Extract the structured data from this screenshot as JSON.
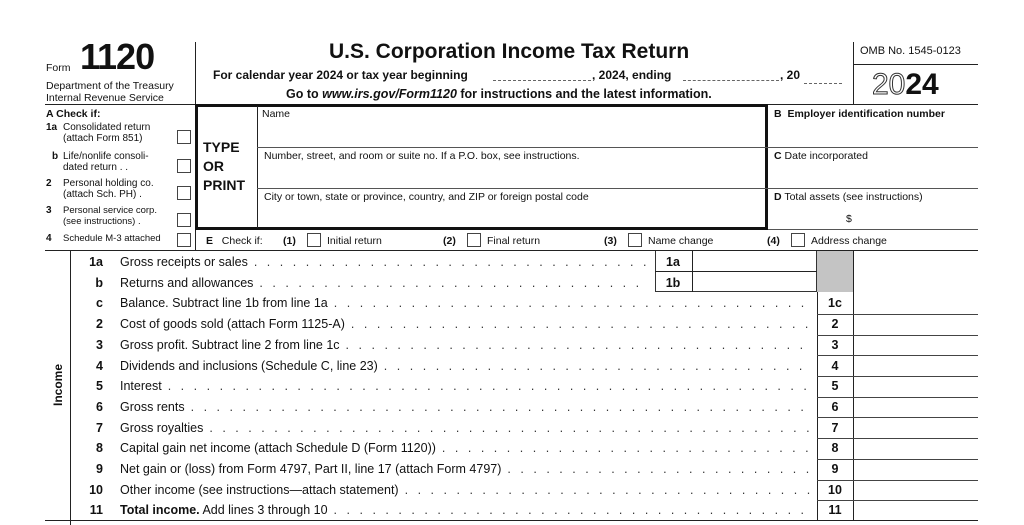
{
  "header": {
    "form_prefix": "Form",
    "form_number": "1120",
    "dept_line1": "Department of the Treasury",
    "dept_line2": "Internal Revenue Service",
    "title": "U.S. Corporation Income Tax Return",
    "subtitle_a": "For calendar year 2024 or tax year beginning",
    "subtitle_b": ", 2024, ending",
    "subtitle_c": ", 20",
    "goto_prefix": "Go to",
    "goto_url": "www.irs.gov/Form1120",
    "goto_suffix": "for instructions and the latest information.",
    "omb": "OMB No. 1545-0123",
    "year_outline": "20",
    "year_bold": "24"
  },
  "check_a": {
    "title": "A  Check if:",
    "items": [
      {
        "num": "1a",
        "l1": "Consolidated return",
        "l2": "(attach Form 851)"
      },
      {
        "num": "b",
        "l1": "Life/nonlife consoli-",
        "l2": "dated return .     ."
      },
      {
        "num": "2",
        "l1": "Personal holding co.",
        "l2": "(attach Sch. PH)  ."
      },
      {
        "num": "3",
        "l1": "Personal service corp.",
        "l2": "(see instructions)  ."
      },
      {
        "num": "4",
        "l1": "Schedule M-3 attached",
        "l2": ""
      }
    ]
  },
  "type_or_print": {
    "l1": "TYPE",
    "l2": "OR",
    "l3": "PRINT"
  },
  "address": {
    "name_label": "Name",
    "name_value": "",
    "street_label": "Number, street, and room or suite no. If a P.O. box, see instructions.",
    "street_value": "",
    "city_label": "City or town, state or province, country, and ZIP or foreign postal code",
    "city_value": ""
  },
  "right_fields": {
    "b_letter": "B",
    "b_label": "Employer identification number",
    "c_letter": "C",
    "c_label": "Date incorporated",
    "d_letter": "D",
    "d_label": "Total assets (see instructions)",
    "d_currency": "$"
  },
  "check_e": {
    "label_letter": "E",
    "label": "Check if:",
    "options": [
      {
        "num": "(1)",
        "label": "Initial return"
      },
      {
        "num": "(2)",
        "label": "Final return"
      },
      {
        "num": "(3)",
        "label": "Name change"
      },
      {
        "num": "(4)",
        "label": "Address change"
      }
    ]
  },
  "income": {
    "section_label": "Income",
    "lines": [
      {
        "num": "1a",
        "label": "Gross receipts or sales",
        "box": "1a"
      },
      {
        "num": "b",
        "label": "Returns and allowances",
        "box": "1b"
      },
      {
        "num": "c",
        "label": "Balance. Subtract line 1b from line 1a",
        "box": "1c"
      },
      {
        "num": "2",
        "label": "Cost of goods sold (attach Form 1125-A)",
        "box": "2"
      },
      {
        "num": "3",
        "label": "Gross profit. Subtract line 2 from line 1c",
        "box": "3"
      },
      {
        "num": "4",
        "label": "Dividends and inclusions (Schedule C, line 23)",
        "box": "4"
      },
      {
        "num": "5",
        "label": "Interest",
        "box": "5"
      },
      {
        "num": "6",
        "label": "Gross rents",
        "box": "6"
      },
      {
        "num": "7",
        "label": "Gross royalties",
        "box": "7"
      },
      {
        "num": "8",
        "label": "Capital gain net income (attach Schedule D (Form 1120))",
        "box": "8"
      },
      {
        "num": "9",
        "label": "Net gain or (loss) from Form 4797, Part II, line 17 (attach Form 4797)",
        "box": "9"
      },
      {
        "num": "10",
        "label": "Other income (see instructions—attach statement)",
        "box": "10"
      },
      {
        "num": "11",
        "label_bold": "Total income.",
        "label": "Add lines 3 through 10",
        "box": "11"
      }
    ]
  }
}
